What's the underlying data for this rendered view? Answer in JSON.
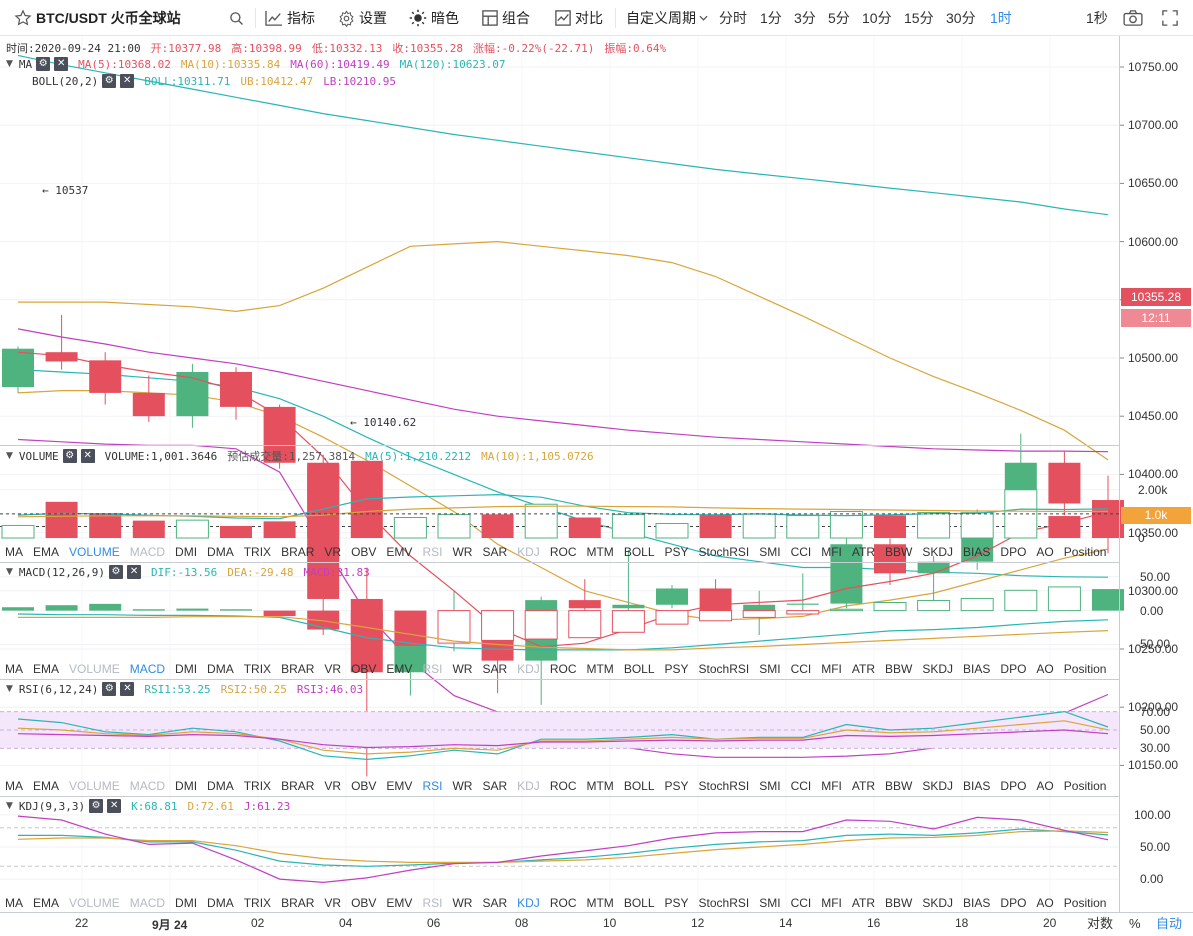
{
  "toolbar": {
    "symbol": "BTC/USDT 火币全球站",
    "indicators": "指标",
    "settings": "设置",
    "theme": "暗色",
    "group": "组合",
    "compare": "对比",
    "custom_period": "自定义周期",
    "periods": [
      "分时",
      "1分",
      "3分",
      "5分",
      "10分",
      "15分",
      "30分",
      "1时"
    ],
    "active_period": "1时",
    "refresh": "1秒"
  },
  "info_line": {
    "time": "时间:2020-09-24 21:00",
    "open": "开:10377.98",
    "high": "高:10398.99",
    "low": "低:10332.13",
    "close": "收:10355.28",
    "change": "涨幅:-0.22%(-22.71)",
    "amplitude": "振幅:0.64%"
  },
  "ma_legend": {
    "name": "MA",
    "ma5": "MA(5):10368.02",
    "ma10": "MA(10):10335.84",
    "ma60": "MA(60):10419.49",
    "ma120": "MA(120):10623.07"
  },
  "boll_legend": {
    "name": "BOLL(20,2)",
    "boll": "BOLL:10311.71",
    "ub": "UB:10412.47",
    "lb": "LB:10210.95"
  },
  "volume_legend": {
    "name": "VOLUME",
    "volume": "VOLUME:1,001.3646",
    "estimate": "预估成交量:1,257.3814",
    "ma5": "MA(5):1,210.2212",
    "ma10": "MA(10):1,105.0726"
  },
  "macd_legend": {
    "name": "MACD(12,26,9)",
    "dif": "DIF:-13.56",
    "dea": "DEA:-29.48",
    "macd": "MACD:31.83"
  },
  "rsi_legend": {
    "name": "RSI(6,12,24)",
    "rsi1": "RSI1:53.25",
    "rsi2": "RSI2:50.25",
    "rsi3": "RSI3:46.03"
  },
  "kdj_legend": {
    "name": "KDJ(9,3,3)",
    "k": "K:68.81",
    "d": "D:72.61",
    "j": "J:61.23"
  },
  "indicator_tabs": [
    "MA",
    "EMA",
    "VOLUME",
    "MACD",
    "DMI",
    "DMA",
    "TRIX",
    "BRAR",
    "VR",
    "OBV",
    "EMV",
    "RSI",
    "WR",
    "SAR",
    "KDJ",
    "ROC",
    "MTM",
    "BOLL",
    "PSY",
    "StochRSI",
    "SMI",
    "CCI",
    "MFI",
    "ATR",
    "BBW",
    "SKDJ",
    "BIAS",
    "DPO",
    "AO",
    "Position"
  ],
  "price_axis": [
    "10750.00",
    "10700.00",
    "10650.00",
    "10600.00",
    "10550.00",
    "10500.00",
    "10450.00",
    "10400.00",
    "10350.00",
    "10300.00",
    "10250.00",
    "10200.00",
    "10150.00"
  ],
  "volume_axis": [
    "2.00k",
    "1.0k",
    "0"
  ],
  "macd_axis": [
    "50.00",
    "0.00",
    "-50.00"
  ],
  "rsi_axis": [
    "70.00",
    "50.00",
    "30.00"
  ],
  "kdj_axis": [
    "100.00",
    "50.00",
    "0.00"
  ],
  "current_price": "10355.28",
  "countdown": "12:11",
  "current_volume": "1.0k",
  "high_marker": "10537",
  "low_marker": "10140.62",
  "time_axis": [
    "22",
    "9月 24",
    "02",
    "04",
    "06",
    "08",
    "10",
    "12",
    "14",
    "16",
    "18",
    "20"
  ],
  "bottom_right": {
    "log": "对数",
    "percent": "%",
    "auto": "自动"
  },
  "colors": {
    "up": "#4fb37f",
    "down": "#e5505f",
    "accent": "#2f8be6",
    "ma5": "#e5505f",
    "ma10": "#d9a53b",
    "ma60": "#c13fc2",
    "ma120": "#2bb5b5"
  },
  "chart_data": {
    "type": "candlestick",
    "candles": [
      {
        "o": 10475,
        "h": 10510,
        "l": 10470,
        "c": 10508
      },
      {
        "o": 10505,
        "h": 10537,
        "l": 10490,
        "c": 10497
      },
      {
        "o": 10498,
        "h": 10505,
        "l": 10460,
        "c": 10470
      },
      {
        "o": 10470,
        "h": 10485,
        "l": 10445,
        "c": 10450
      },
      {
        "o": 10450,
        "h": 10495,
        "l": 10440,
        "c": 10488
      },
      {
        "o": 10488,
        "h": 10492,
        "l": 10447,
        "c": 10458
      },
      {
        "o": 10458,
        "h": 10460,
        "l": 10405,
        "c": 10410
      },
      {
        "o": 10410,
        "h": 10417,
        "l": 10262,
        "c": 10293
      },
      {
        "o": 10293,
        "h": 10320,
        "l": 10140.62,
        "c": 10230
      },
      {
        "o": 10230,
        "h": 10280,
        "l": 10210,
        "c": 10255
      },
      {
        "o": 10255,
        "h": 10300,
        "l": 10248,
        "c": 10270
      },
      {
        "o": 10270,
        "h": 10272,
        "l": 10212,
        "c": 10240
      },
      {
        "o": 10240,
        "h": 10295,
        "l": 10202,
        "c": 10292
      },
      {
        "o": 10292,
        "h": 10310,
        "l": 10280,
        "c": 10285
      },
      {
        "o": 10285,
        "h": 10335,
        "l": 10282,
        "c": 10288
      },
      {
        "o": 10288,
        "h": 10305,
        "l": 10285,
        "c": 10302
      },
      {
        "o": 10302,
        "h": 10310,
        "l": 10280,
        "c": 10280
      },
      {
        "o": 10280,
        "h": 10300,
        "l": 10262,
        "c": 10288
      },
      {
        "o": 10288,
        "h": 10315,
        "l": 10280,
        "c": 10289
      },
      {
        "o": 10289,
        "h": 10345,
        "l": 10285,
        "c": 10340
      },
      {
        "o": 10340,
        "h": 10345,
        "l": 10305,
        "c": 10315
      },
      {
        "o": 10315,
        "h": 10330,
        "l": 10285,
        "c": 10325
      },
      {
        "o": 10325,
        "h": 10370,
        "l": 10318,
        "c": 10365
      },
      {
        "o": 10365,
        "h": 10435,
        "l": 10360,
        "c": 10410
      },
      {
        "o": 10410,
        "h": 10420,
        "l": 10365,
        "c": 10375
      },
      {
        "o": 10377.98,
        "h": 10398.99,
        "l": 10332.13,
        "c": 10355.28
      }
    ],
    "ma5": [
      10505,
      10502,
      10494,
      10488,
      10483,
      10472,
      10450,
      10415,
      10368,
      10330,
      10300,
      10268,
      10252,
      10255,
      10267,
      10280,
      10288,
      10290,
      10292,
      10302,
      10308,
      10315,
      10330,
      10350,
      10358,
      10368
    ],
    "ma10": [
      10470,
      10472,
      10472,
      10470,
      10468,
      10462,
      10450,
      10432,
      10412,
      10390,
      10368,
      10340,
      10320,
      10300,
      10290,
      10280,
      10275,
      10276,
      10278,
      10287,
      10292,
      10298,
      10308,
      10318,
      10328,
      10335.84
    ],
    "ma60": [
      10525,
      10518,
      10512,
      10505,
      10500,
      10495,
      10488,
      10480,
      10472,
      10464,
      10456,
      10450,
      10446,
      10442,
      10438,
      10435,
      10432,
      10430,
      10428,
      10426,
      10424,
      10422,
      10421,
      10420,
      10420,
      10419.49
    ],
    "ma120": [
      10760,
      10752,
      10745,
      10738,
      10731,
      10724,
      10717,
      10710,
      10704,
      10698,
      10692,
      10687,
      10682,
      10677,
      10672,
      10667,
      10662,
      10658,
      10654,
      10650,
      10646,
      10642,
      10638,
      10634,
      10628,
      10623.07
    ],
    "boll_mid": [
      10490,
      10488,
      10486,
      10483,
      10480,
      10475,
      10465,
      10450,
      10432,
      10415,
      10400,
      10385,
      10372,
      10360,
      10350,
      10340,
      10330,
      10325,
      10320,
      10320,
      10318,
      10316,
      10315,
      10313,
      10312,
      10311.71
    ],
    "boll_ub": [
      10548,
      10548,
      10548,
      10546,
      10544,
      10540,
      10545,
      10560,
      10578,
      10596,
      10598,
      10600,
      10596,
      10592,
      10588,
      10582,
      10570,
      10553,
      10536,
      10518,
      10500,
      10484,
      10470,
      10455,
      10438,
      10412.47
    ],
    "boll_lb": [
      10430,
      10428,
      10426,
      10425,
      10425,
      10422,
      10402,
      10340,
      10280,
      10240,
      10210,
      10196,
      10185,
      10175,
      10165,
      10160,
      10157,
      10157,
      10157,
      10158,
      10160,
      10165,
      10175,
      10185,
      10195,
      10210.95
    ],
    "volume": [
      520,
      1500,
      1030,
      720,
      740,
      500,
      690,
      3000,
      3200,
      850,
      970,
      980,
      1400,
      850,
      970,
      600,
      960,
      1000,
      930,
      1100,
      940,
      1060,
      1050,
      2000,
      910,
      1001.3646
    ],
    "vol_ma5": [
      950,
      1020,
      1000,
      940,
      900,
      830,
      800,
      1200,
      1620,
      1700,
      1750,
      1800,
      1690,
      1320,
      1050,
      980,
      960,
      1000,
      950,
      930,
      960,
      1010,
      1020,
      1200,
      1180,
      1210.22
    ],
    "vol_ma10": [
      880,
      900,
      920,
      920,
      920,
      900,
      880,
      950,
      1100,
      1200,
      1250,
      1300,
      1320,
      1320,
      1300,
      1290,
      1250,
      1220,
      1200,
      1180,
      1160,
      1140,
      1120,
      1110,
      1100,
      1105.07
    ],
    "macd_hist": [
      5,
      8,
      10,
      2,
      3,
      2,
      -8,
      -28,
      -45,
      -52,
      -48,
      -44,
      -42,
      -40,
      -32,
      -20,
      -15,
      -10,
      -5,
      2,
      12,
      15,
      18,
      30,
      35,
      31.83
    ],
    "macd_dif": [
      -5,
      -6,
      -6,
      -7,
      -7,
      -8,
      -10,
      -25,
      -40,
      -48,
      -55,
      -57,
      -58,
      -58,
      -58,
      -55,
      -50,
      -45,
      -40,
      -35,
      -30,
      -28,
      -25,
      -20,
      -16,
      -13.56
    ],
    "macd_dea": [
      -10,
      -10,
      -10,
      -10,
      -9,
      -9,
      -9,
      -15,
      -25,
      -35,
      -45,
      -50,
      -54,
      -56,
      -58,
      -58,
      -55,
      -53,
      -50,
      -47,
      -44,
      -41,
      -38,
      -35,
      -32,
      -29.48
    ],
    "rsi1": [
      62,
      58,
      48,
      45,
      52,
      48,
      38,
      22,
      18,
      22,
      28,
      24,
      40,
      40,
      42,
      45,
      40,
      42,
      42,
      56,
      50,
      52,
      58,
      64,
      70,
      53.25
    ],
    "rsi2": [
      52,
      50,
      46,
      44,
      48,
      46,
      40,
      28,
      24,
      26,
      30,
      28,
      38,
      38,
      40,
      42,
      40,
      41,
      41,
      50,
      47,
      48,
      52,
      56,
      60,
      50.25
    ],
    "rsi3": [
      46,
      45,
      44,
      43,
      45,
      44,
      40,
      34,
      31,
      32,
      34,
      33,
      37,
      37,
      38,
      39,
      38,
      39,
      39,
      44,
      43,
      44,
      46,
      48,
      50,
      46.03
    ],
    "kdj_k": [
      68,
      68,
      65,
      58,
      58,
      45,
      28,
      22,
      20,
      22,
      25,
      26,
      30,
      34,
      40,
      48,
      54,
      58,
      60,
      68,
      70,
      68,
      72,
      78,
      74,
      68.81
    ],
    "kdj_d": [
      62,
      64,
      64,
      60,
      60,
      52,
      40,
      32,
      28,
      26,
      26,
      26,
      28,
      30,
      34,
      40,
      46,
      50,
      54,
      60,
      64,
      65,
      68,
      74,
      75,
      72.61
    ],
    "kdj_j": [
      98,
      92,
      70,
      54,
      56,
      30,
      0,
      -5,
      2,
      14,
      24,
      26,
      36,
      44,
      52,
      64,
      72,
      74,
      74,
      92,
      90,
      78,
      96,
      92,
      76,
      61.23
    ],
    "price_range": [
      10120,
      10780
    ],
    "volume_range": [
      0,
      3400
    ],
    "macd_range": [
      -70,
      60
    ],
    "rsi_range": [
      0,
      100
    ],
    "kdj_range": [
      -20,
      120
    ]
  }
}
